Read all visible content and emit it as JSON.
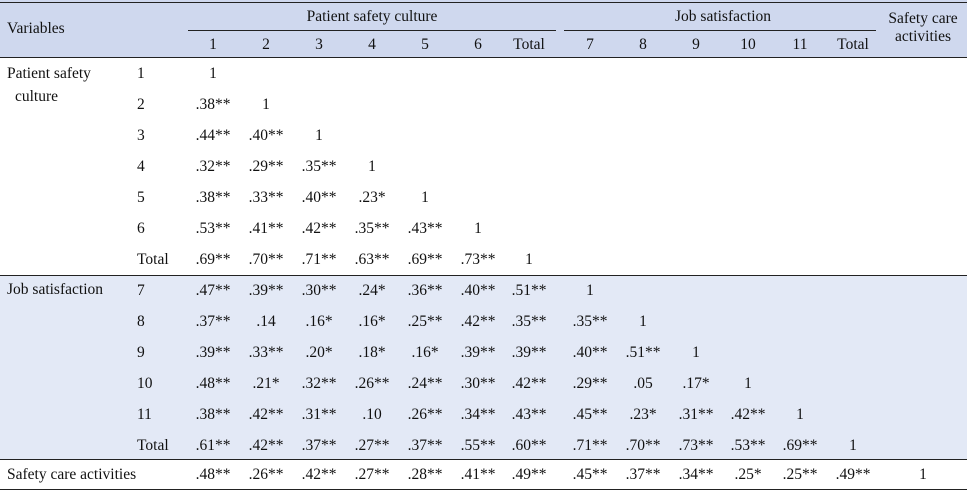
{
  "header": {
    "variables": "Variables",
    "group_psc": "Patient safety culture",
    "group_js": "Job satisfaction",
    "safety_care_line1": "Safety care",
    "safety_care_line2": "activities",
    "columns": [
      "1",
      "2",
      "3",
      "4",
      "5",
      "6",
      "Total",
      "7",
      "8",
      "9",
      "10",
      "11",
      "Total"
    ]
  },
  "groups": {
    "psc_line1": "Patient safety",
    "psc_line2": "culture",
    "js": "Job satisfaction",
    "sca": "Safety care activities"
  },
  "rows": [
    {
      "label": "1",
      "cells": [
        "1",
        "",
        "",
        "",
        "",
        "",
        "",
        "",
        "",
        "",
        "",
        "",
        "",
        ""
      ]
    },
    {
      "label": "2",
      "cells": [
        ".38**",
        "1",
        "",
        "",
        "",
        "",
        "",
        "",
        "",
        "",
        "",
        "",
        "",
        ""
      ]
    },
    {
      "label": "3",
      "cells": [
        ".44**",
        ".40**",
        "1",
        "",
        "",
        "",
        "",
        "",
        "",
        "",
        "",
        "",
        "",
        ""
      ]
    },
    {
      "label": "4",
      "cells": [
        ".32**",
        ".29**",
        ".35**",
        "1",
        "",
        "",
        "",
        "",
        "",
        "",
        "",
        "",
        "",
        ""
      ]
    },
    {
      "label": "5",
      "cells": [
        ".38**",
        ".33**",
        ".40**",
        ".23*",
        "1",
        "",
        "",
        "",
        "",
        "",
        "",
        "",
        "",
        ""
      ]
    },
    {
      "label": "6",
      "cells": [
        ".53**",
        ".41**",
        ".42**",
        ".35**",
        ".43**",
        "1",
        "",
        "",
        "",
        "",
        "",
        "",
        "",
        ""
      ]
    },
    {
      "label": "Total",
      "cells": [
        ".69**",
        ".70**",
        ".71**",
        ".63**",
        ".69**",
        ".73**",
        "1",
        "",
        "",
        "",
        "",
        "",
        "",
        ""
      ]
    },
    {
      "label": "7",
      "cells": [
        ".47**",
        ".39**",
        ".30**",
        ".24*",
        ".36**",
        ".40**",
        ".51**",
        "1",
        "",
        "",
        "",
        "",
        "",
        ""
      ]
    },
    {
      "label": "8",
      "cells": [
        ".37**",
        ".14",
        ".16*",
        ".16*",
        ".25**",
        ".42**",
        ".35**",
        ".35**",
        "1",
        "",
        "",
        "",
        "",
        ""
      ]
    },
    {
      "label": "9",
      "cells": [
        ".39**",
        ".33**",
        ".20*",
        ".18*",
        ".16*",
        ".39**",
        ".39**",
        ".40**",
        ".51**",
        "1",
        "",
        "",
        "",
        ""
      ]
    },
    {
      "label": "10",
      "cells": [
        ".48**",
        ".21*",
        ".32**",
        ".26**",
        ".24**",
        ".30**",
        ".42**",
        ".29**",
        ".05",
        ".17*",
        "1",
        "",
        "",
        ""
      ]
    },
    {
      "label": "11",
      "cells": [
        ".38**",
        ".42**",
        ".31**",
        ".10",
        ".26**",
        ".34**",
        ".43**",
        ".45**",
        ".23*",
        ".31**",
        ".42**",
        "1",
        "",
        ""
      ]
    },
    {
      "label": "Total",
      "cells": [
        ".61**",
        ".42**",
        ".37**",
        ".27**",
        ".37**",
        ".55**",
        ".60**",
        ".71**",
        ".70**",
        ".73**",
        ".53**",
        ".69**",
        "1",
        ""
      ]
    },
    {
      "label": "",
      "cells": [
        ".48**",
        ".26**",
        ".42**",
        ".27**",
        ".28**",
        ".41**",
        ".49**",
        ".45**",
        ".37**",
        ".34**",
        ".25*",
        ".25**",
        ".49**",
        "1"
      ]
    }
  ]
}
